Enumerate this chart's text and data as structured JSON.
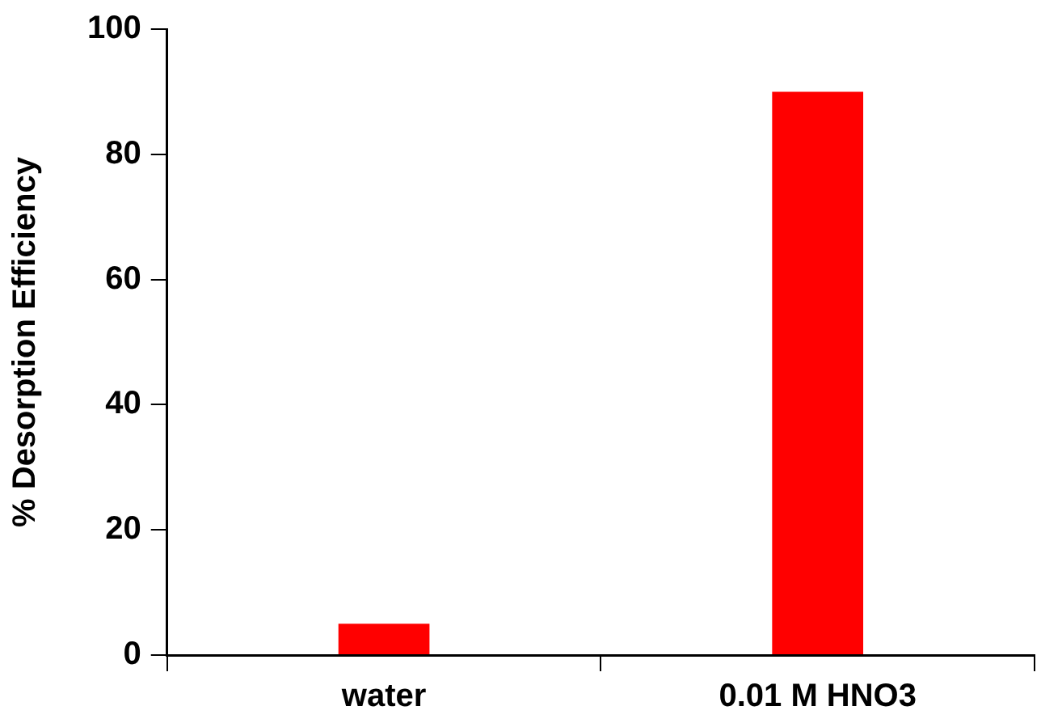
{
  "chart_data": {
    "type": "bar",
    "ylabel": "% Desorption Efficiency",
    "categories": [
      "water",
      "0.01 M HNO3"
    ],
    "values": [
      5,
      90
    ],
    "color": "#ff0000",
    "ylim": [
      0,
      100
    ],
    "yticks": [
      0,
      20,
      40,
      60,
      80,
      100
    ],
    "grid": false,
    "legend": false
  }
}
